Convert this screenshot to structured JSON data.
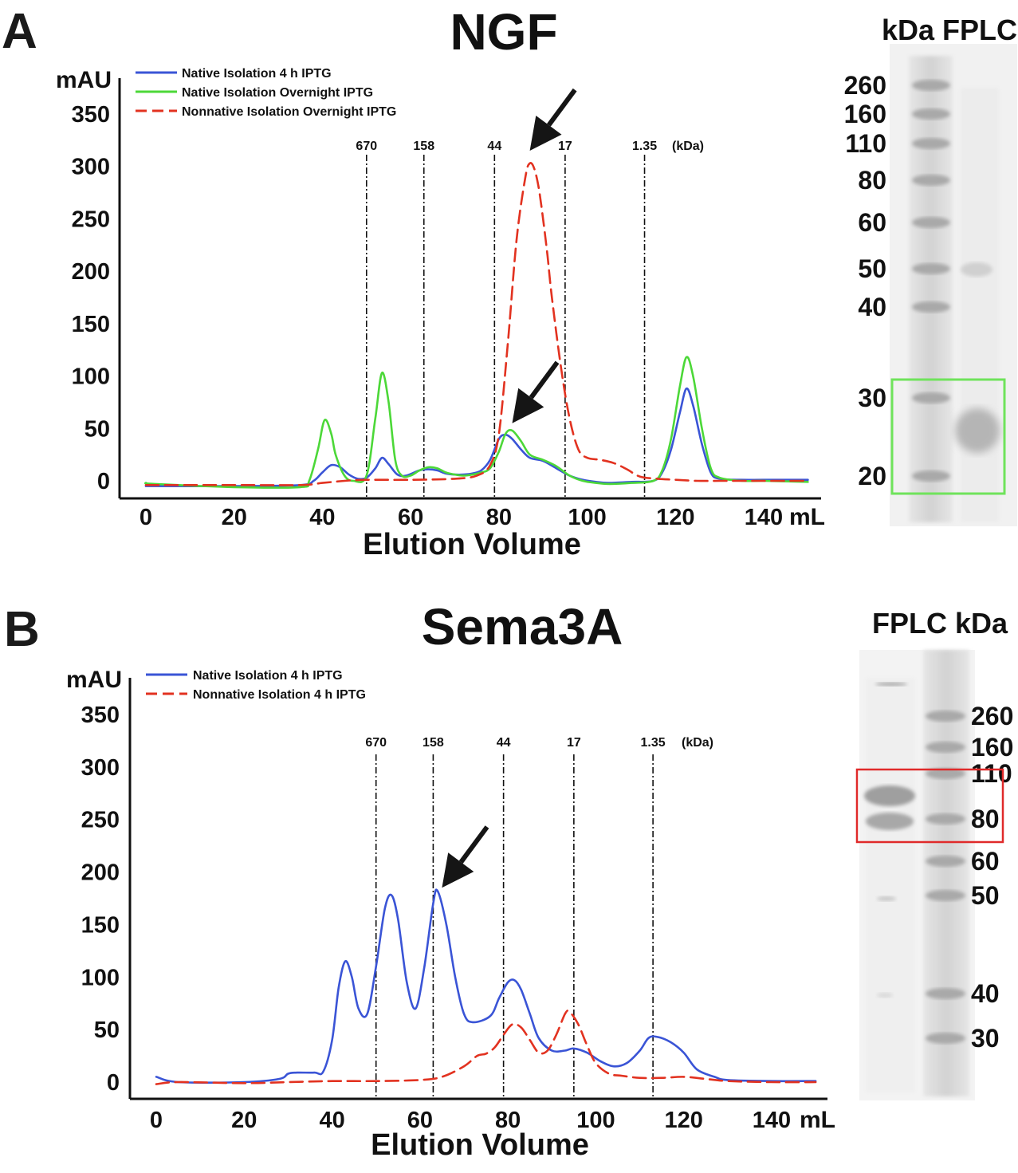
{
  "figure": {
    "panel_a": {
      "letter": "A"
    },
    "panel_b": {
      "letter": "B"
    }
  },
  "chart_data": [
    {
      "type": "line",
      "title": "NGF",
      "ylabel": "mAU",
      "xlabel": "Elution Volume",
      "x_unit": "mL",
      "xlim": [
        -3,
        150
      ],
      "ylim": [
        -10,
        378
      ],
      "x_ticks": [
        "0",
        "20",
        "40",
        "60",
        "80",
        "100",
        "120",
        "140"
      ],
      "y_ticks": [
        "0",
        "50",
        "100",
        "150",
        "200",
        "250",
        "300",
        "350"
      ],
      "legend_position": "top-left",
      "markers": {
        "unit": "(kDa)",
        "labels": [
          "670",
          "158",
          "44",
          "17",
          "1.35"
        ],
        "x": [
          50,
          63,
          79,
          95,
          113
        ]
      },
      "arrows": [
        {
          "points_to_x": 87,
          "points_to_y": 315
        },
        {
          "points_to_x": 83,
          "points_to_y": 55
        }
      ],
      "series": [
        {
          "name": "Native Isolation 4 h IPTG",
          "color": "#3a54d6",
          "dash": "solid",
          "x": [
            0,
            20,
            35,
            38,
            40,
            42,
            44,
            46,
            48,
            50,
            52,
            53.5,
            55,
            57,
            59,
            62,
            64,
            66,
            68,
            70,
            72,
            74,
            76,
            78,
            80,
            81.5,
            83,
            85,
            87,
            90,
            93,
            96,
            99,
            102,
            105,
            110,
            115,
            117,
            119,
            121,
            122.5,
            124,
            126,
            128,
            130,
            135,
            140,
            150
          ],
          "y": [
            -5,
            -5,
            -4,
            0,
            8,
            15,
            13,
            6,
            2,
            3,
            12,
            22,
            16,
            6,
            5,
            10,
            11,
            10,
            7,
            6,
            6,
            7,
            10,
            20,
            40,
            44,
            40,
            30,
            22,
            19,
            12,
            5,
            1,
            -1,
            -2,
            -1,
            0,
            8,
            30,
            65,
            88,
            72,
            35,
            8,
            2,
            1,
            1,
            1
          ]
        },
        {
          "name": "Native Isolation Overnight IPTG",
          "color": "#4cd838",
          "dash": "solid",
          "x": [
            0,
            2,
            20,
            35,
            37,
            39,
            40.5,
            42,
            43,
            45,
            47,
            50,
            52,
            53.5,
            55,
            56.5,
            58,
            60,
            62,
            64,
            66,
            68,
            70,
            72,
            74,
            76,
            78,
            80,
            81.5,
            83,
            85,
            87,
            90,
            93,
            96,
            99,
            102,
            105,
            110,
            115,
            117,
            119,
            121,
            122.5,
            124,
            126,
            128,
            130,
            135,
            140,
            150
          ],
          "y": [
            -2,
            -3,
            -6,
            -6,
            0,
            30,
            58,
            45,
            25,
            5,
            0,
            5,
            60,
            103,
            75,
            20,
            5,
            5,
            10,
            13,
            12,
            8,
            6,
            5,
            6,
            8,
            12,
            28,
            45,
            48,
            38,
            25,
            20,
            14,
            5,
            0,
            -2,
            -3,
            -2,
            0,
            10,
            40,
            90,
            118,
            100,
            50,
            12,
            3,
            0,
            0,
            -1
          ]
        },
        {
          "name": "Nonnative Isolation Overnight IPTG",
          "color": "#e23220",
          "dash": "dashed",
          "x": [
            0,
            20,
            35,
            40,
            45,
            50,
            60,
            70,
            75,
            78,
            80,
            82,
            84,
            86,
            87,
            88,
            89,
            90,
            91,
            92,
            94,
            96,
            98,
            100,
            103,
            106,
            109,
            112,
            116,
            120,
            125,
            130,
            140,
            150
          ],
          "y": [
            -4,
            -4,
            -4,
            -2,
            0,
            1,
            1,
            2,
            5,
            15,
            45,
            130,
            230,
            290,
            303,
            298,
            280,
            250,
            215,
            175,
            110,
            60,
            30,
            22,
            20,
            17,
            11,
            4,
            2,
            1,
            0,
            0,
            0,
            0
          ]
        }
      ]
    },
    {
      "type": "line",
      "title": "Sema3A",
      "ylabel": "mAU",
      "xlabel": "Elution Volume",
      "x_unit": "mL",
      "xlim": [
        -3,
        152
      ],
      "ylim": [
        -10,
        365
      ],
      "x_ticks": [
        "0",
        "20",
        "40",
        "60",
        "80",
        "100",
        "120",
        "140"
      ],
      "y_ticks": [
        "0",
        "50",
        "100",
        "150",
        "200",
        "250",
        "300",
        "350"
      ],
      "legend_position": "top-left",
      "markers": {
        "unit": "(kDa)",
        "labels": [
          "670",
          "158",
          "44",
          "17",
          "1.35"
        ],
        "x": [
          50,
          63,
          79,
          95,
          113
        ]
      },
      "arrows": [
        {
          "points_to_x": 65,
          "points_to_y": 185
        }
      ],
      "series": [
        {
          "name": "Native Isolation 4 h IPTG",
          "color": "#3a54d6",
          "dash": "solid",
          "x": [
            0,
            5,
            20,
            28,
            30,
            32,
            36,
            38,
            40,
            41.5,
            43,
            44.5,
            46,
            48,
            50,
            52,
            53.5,
            55,
            57,
            59,
            61,
            63,
            64,
            66,
            68,
            70,
            72,
            76,
            78,
            80,
            81.5,
            83,
            85,
            87,
            90,
            93,
            95,
            98,
            101,
            104,
            107,
            110,
            112,
            114,
            117,
            120,
            123,
            127,
            130,
            140,
            150
          ],
          "y": [
            5,
            0,
            0,
            3,
            8,
            9,
            9,
            10,
            40,
            90,
            115,
            100,
            70,
            65,
            110,
            165,
            178,
            155,
            95,
            70,
            110,
            170,
            182,
            150,
            100,
            65,
            57,
            63,
            80,
            95,
            97,
            88,
            65,
            42,
            30,
            30,
            32,
            28,
            20,
            15,
            18,
            30,
            42,
            43,
            38,
            28,
            12,
            5,
            2,
            1,
            1
          ]
        },
        {
          "name": "Nonnative Isolation 4 h IPTG",
          "color": "#e23220",
          "dash": "dashed",
          "x": [
            0,
            5,
            20,
            30,
            40,
            50,
            60,
            65,
            70,
            73,
            75,
            77,
            79,
            81,
            83,
            85,
            87,
            89,
            91,
            93,
            94,
            96,
            98,
            100,
            103,
            106,
            110,
            115,
            120,
            125,
            130,
            140,
            150
          ],
          "y": [
            -2,
            0,
            -1,
            0,
            1,
            1,
            2,
            5,
            15,
            25,
            27,
            33,
            45,
            55,
            52,
            40,
            28,
            30,
            45,
            65,
            67,
            55,
            35,
            18,
            8,
            6,
            4,
            4,
            5,
            3,
            1,
            0,
            0
          ]
        }
      ]
    }
  ],
  "gels": {
    "ngf": {
      "header": "kDa FPLC",
      "markers": [
        "260",
        "160",
        "110",
        "80",
        "60",
        "50",
        "40",
        "30",
        "20"
      ],
      "box_color": "#6fe35b"
    },
    "sema3a": {
      "header": "FPLC kDa",
      "markers": [
        "260",
        "160",
        "110",
        "80",
        "60",
        "50",
        "40",
        "30"
      ],
      "box_color": "#e02a2a"
    }
  }
}
